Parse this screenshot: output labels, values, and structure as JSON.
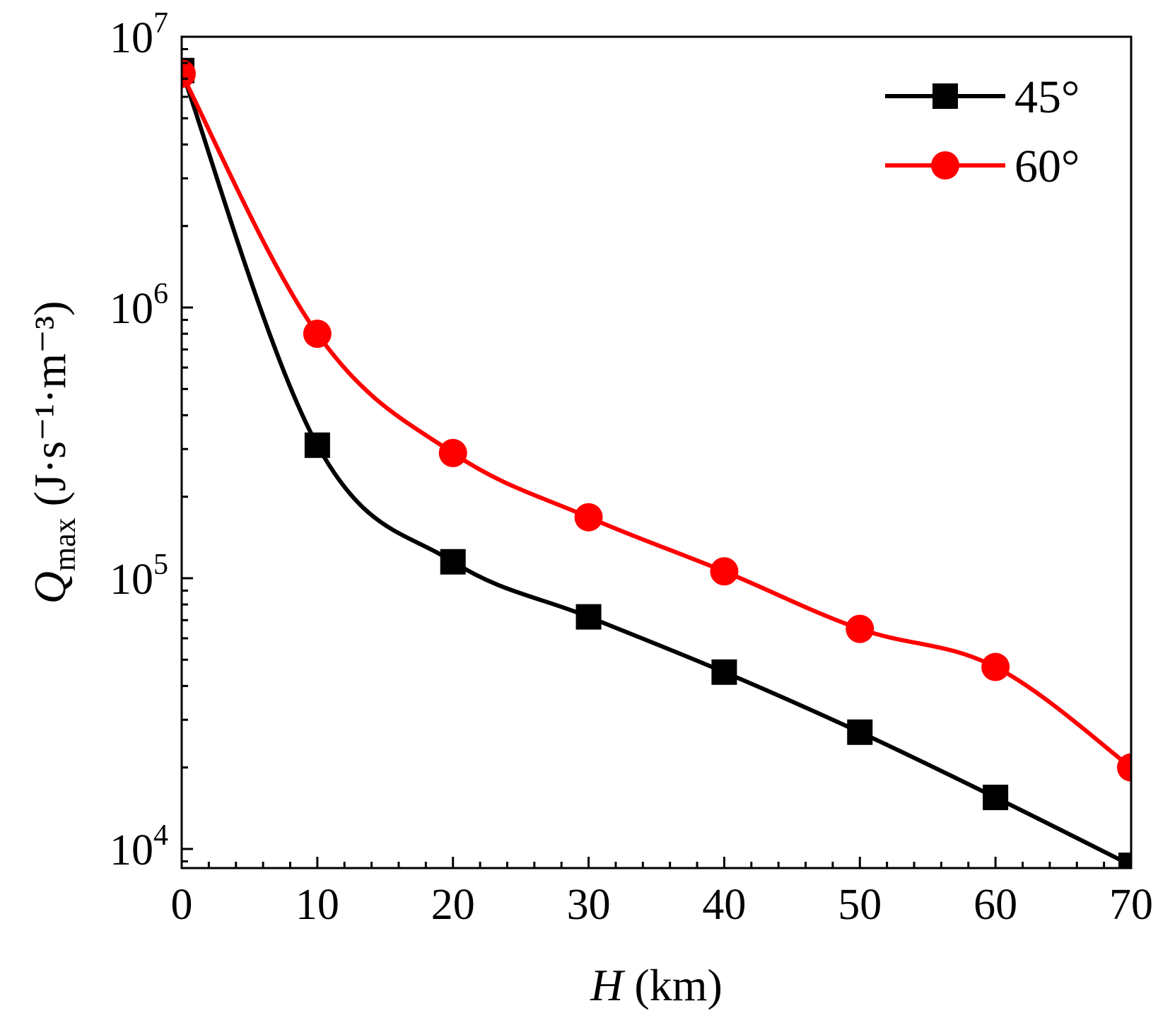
{
  "chart_data": {
    "type": "line",
    "xlabel": {
      "symbol": "H",
      "unit": "(km)"
    },
    "ylabel": {
      "symbol": "Q",
      "subscript": "max",
      "unit": "(J·s⁻¹·m⁻³)"
    },
    "xlim": [
      0,
      70
    ],
    "ylim": [
      8500,
      10000000
    ],
    "yscale": "log",
    "xticks": [
      "0",
      "10",
      "20",
      "30",
      "40",
      "50",
      "60",
      "70"
    ],
    "yticks": [
      {
        "base": "10",
        "exp": "7",
        "value": 10000000
      },
      {
        "base": "10",
        "exp": "6",
        "value": 1000000
      },
      {
        "base": "10",
        "exp": "5",
        "value": 100000
      },
      {
        "base": "10",
        "exp": "4",
        "value": 10000
      }
    ],
    "grid": false,
    "legend_position": "top-right",
    "x": [
      0,
      10,
      20,
      30,
      40,
      50,
      60,
      70
    ],
    "series": [
      {
        "name": "45°",
        "color": "#000000",
        "marker": "square",
        "values": [
          7500000,
          310000,
          115000,
          72000,
          45000,
          27000,
          15500,
          8700
        ]
      },
      {
        "name": "60°",
        "color": "#ff0000",
        "marker": "circle",
        "values": [
          7300000,
          800000,
          290000,
          168000,
          106000,
          65000,
          47000,
          20000
        ]
      }
    ]
  }
}
